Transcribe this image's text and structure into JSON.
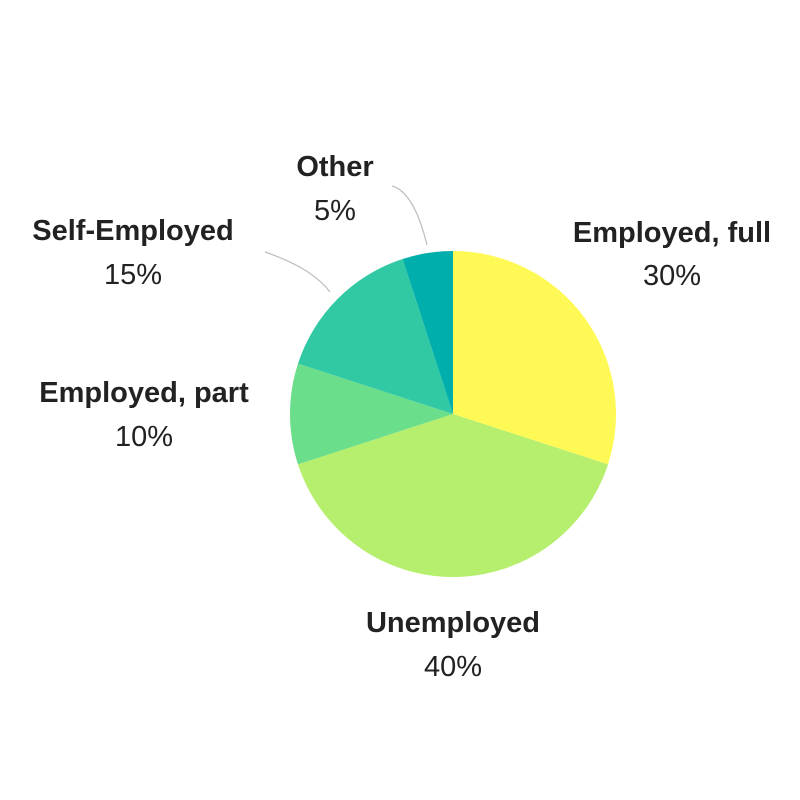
{
  "chart_data": {
    "type": "pie",
    "title": "",
    "slices": [
      {
        "label": "Employed, full",
        "value": 30,
        "display": "30%",
        "color": "#fff955"
      },
      {
        "label": "Unemployed",
        "value": 40,
        "display": "40%",
        "color": "#b5ef6d"
      },
      {
        "label": "Employed, part",
        "value": 10,
        "display": "10%",
        "color": "#6bde8b"
      },
      {
        "label": "Self-Employed",
        "value": 15,
        "display": "15%",
        "color": "#31c9a3"
      },
      {
        "label": "Other",
        "value": 5,
        "display": "5%",
        "color": "#00aeab"
      }
    ],
    "start_angle": "12 o'clock",
    "direction": "clockwise",
    "legend": "none"
  }
}
